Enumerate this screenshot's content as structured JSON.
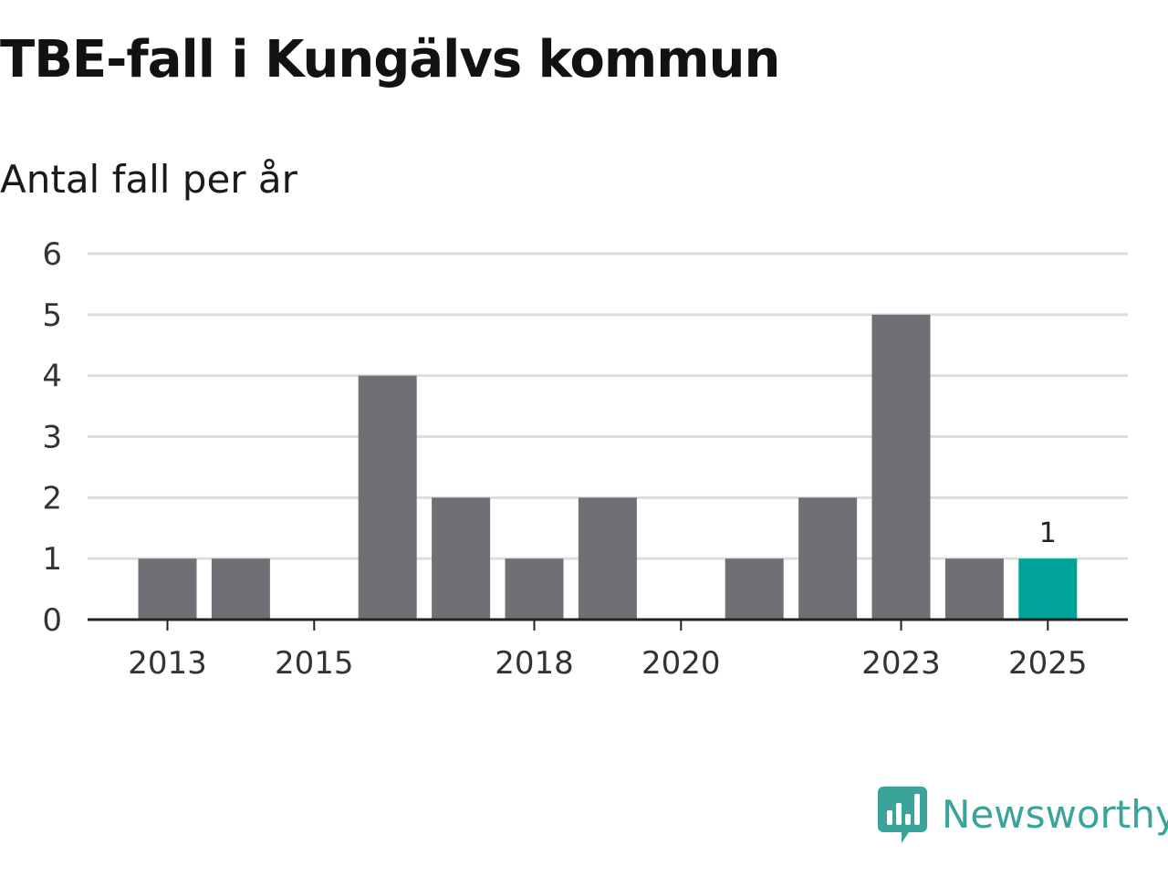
{
  "title": "TBE-fall i Kungälvs kommun",
  "subtitle": "Antal fall per år",
  "brand": {
    "name": "Newsworthy",
    "icon": "newsworthy-logo-icon",
    "color": "#3aa39a"
  },
  "colors": {
    "bar": "#706f75",
    "highlight": "#00a39a",
    "grid": "#dddddd",
    "axis": "#222222"
  },
  "chart_data": {
    "type": "bar",
    "title": "TBE-fall i Kungälvs kommun",
    "subtitle": "Antal fall per år",
    "xlabel": "",
    "ylabel": "",
    "categories": [
      "2013",
      "2014",
      "2015",
      "2016",
      "2017",
      "2018",
      "2019",
      "2020",
      "2021",
      "2022",
      "2023",
      "2024",
      "2025"
    ],
    "values": [
      1,
      1,
      0,
      4,
      2,
      1,
      2,
      0,
      1,
      2,
      5,
      1,
      1
    ],
    "ylim": [
      0,
      6
    ],
    "yticks": [
      "0",
      "1",
      "2",
      "3",
      "4",
      "5",
      "6"
    ],
    "xticks": [
      "2013",
      "2015",
      "2018",
      "2020",
      "2023",
      "2025"
    ],
    "highlight_category": "2025",
    "data_labels": [
      {
        "category": "2025",
        "text": "1"
      }
    ],
    "grid": true,
    "legend": "none"
  }
}
